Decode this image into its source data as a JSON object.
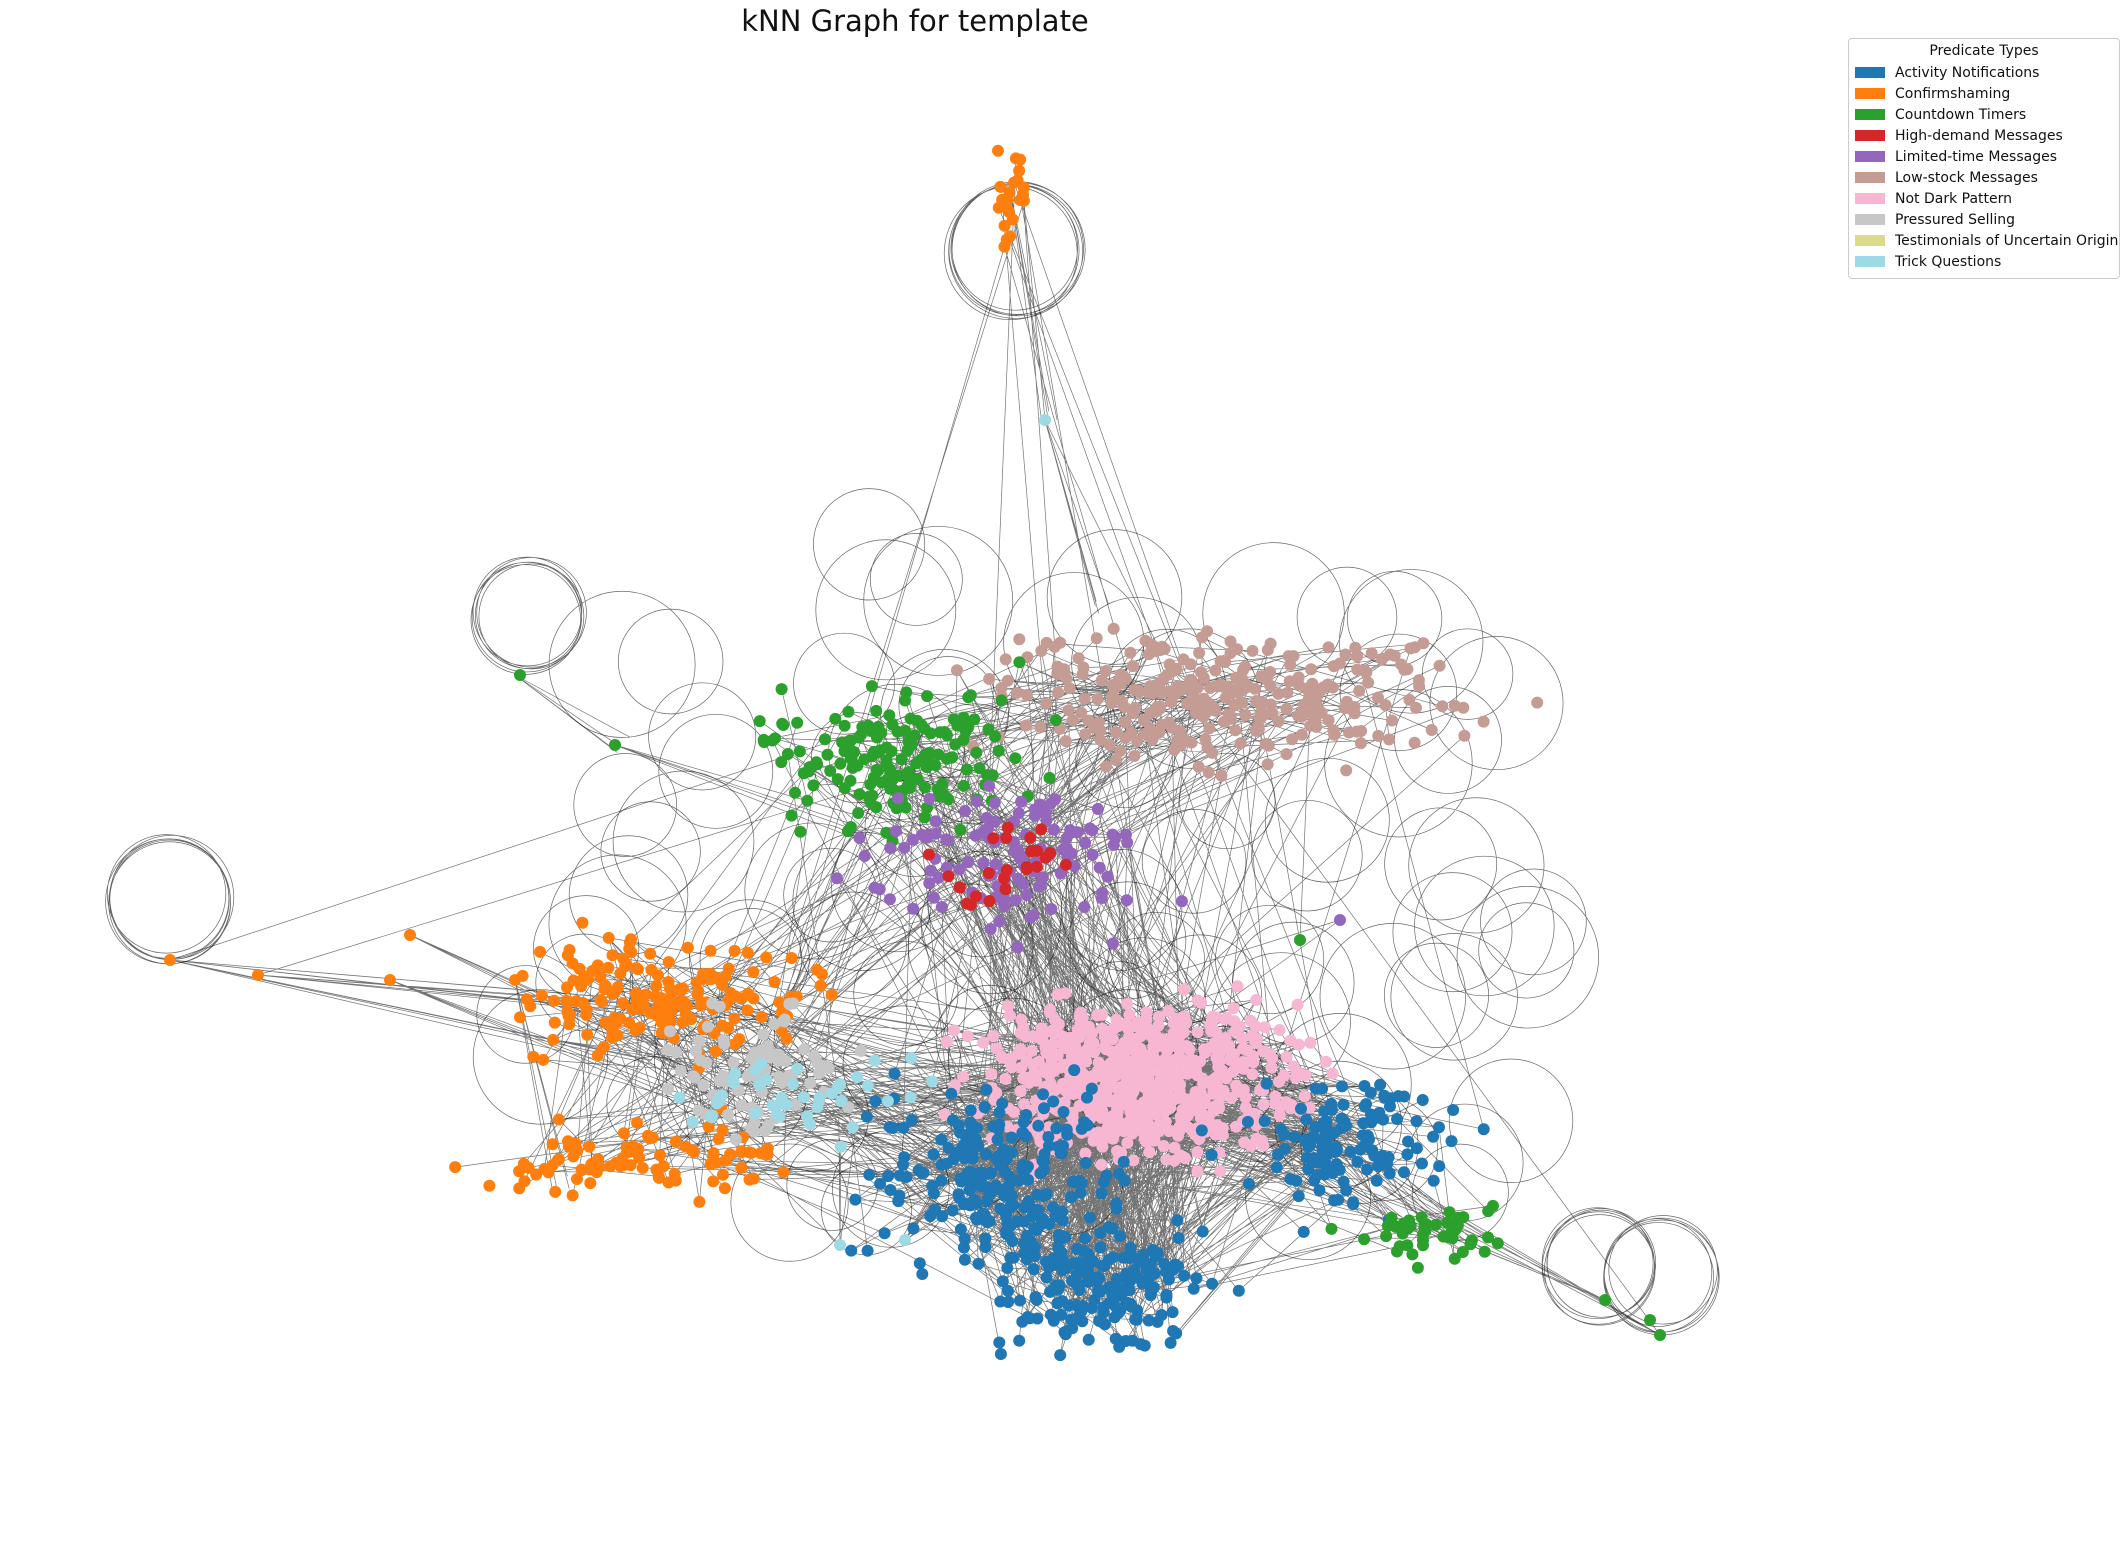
{
  "title": "kNN Graph for template",
  "legend": {
    "title": "Predicate Types",
    "items": [
      {
        "label": "Activity Notifications",
        "color": "#1f77b4"
      },
      {
        "label": "Confirmshaming",
        "color": "#ff7f0e"
      },
      {
        "label": "Countdown Timers",
        "color": "#2ca02c"
      },
      {
        "label": "High-demand Messages",
        "color": "#d62728"
      },
      {
        "label": "Limited-time Messages",
        "color": "#9467bd"
      },
      {
        "label": "Low-stock Messages",
        "color": "#c49c94"
      },
      {
        "label": "Not Dark Pattern",
        "color": "#f7b6d2"
      },
      {
        "label": "Pressured Selling",
        "color": "#c7c7c7"
      },
      {
        "label": "Testimonials of Uncertain Origin",
        "color": "#dbdb8d"
      },
      {
        "label": "Trick Questions",
        "color": "#9edae5"
      }
    ]
  }
}
